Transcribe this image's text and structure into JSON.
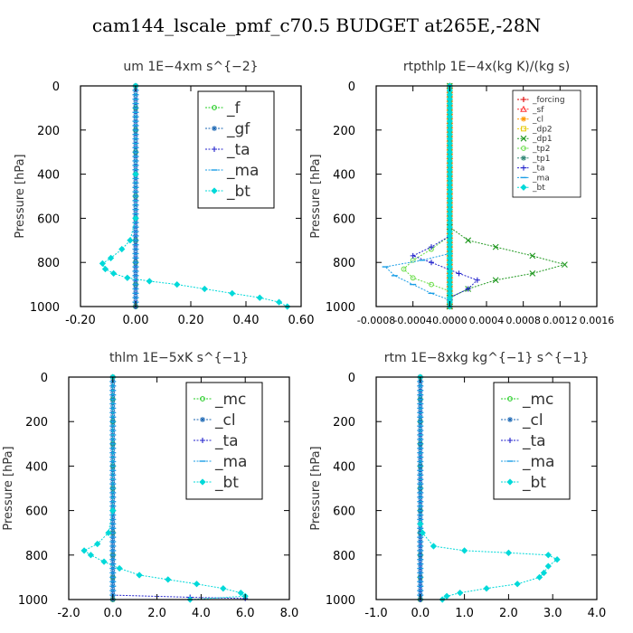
{
  "figure": {
    "title": "cam144_lscale_pmf_c70.5  BUDGET at265E,-28N"
  },
  "chart_data": [
    {
      "type": "line",
      "title": "um   1E−4xm s^{−2}",
      "ylabel": "Pressure [hPa]",
      "xlabel": "",
      "xlim": [
        -0.2,
        0.6
      ],
      "ylim": [
        1000,
        0
      ],
      "xticks": [
        -0.2,
        0.0,
        0.2,
        0.4,
        0.6
      ],
      "xtick_labels": [
        "-0.20",
        "0.00",
        "0.20",
        "0.40",
        "0.60"
      ],
      "yticks": [
        0,
        200,
        400,
        600,
        800,
        1000
      ],
      "ytick_labels": [
        "0",
        "200",
        "400",
        "600",
        "800",
        "1000"
      ],
      "legend": {
        "placement": "top-right",
        "size": "large"
      },
      "series": [
        {
          "name": "_f",
          "color": "#22cc22",
          "marker": "circle",
          "points": [
            [
              0,
              0
            ],
            [
              0,
              100
            ],
            [
              0,
              200
            ],
            [
              0,
              300
            ],
            [
              0,
              400
            ],
            [
              0,
              500
            ],
            [
              0,
              600
            ],
            [
              0,
              700
            ],
            [
              0,
              800
            ],
            [
              0,
              900
            ],
            [
              0,
              1000
            ]
          ]
        },
        {
          "name": "_gf",
          "color": "#1a66b3",
          "marker": "star",
          "points": [
            [
              0,
              0
            ],
            [
              0,
              500
            ],
            [
              0,
              1000
            ]
          ]
        },
        {
          "name": "_ta",
          "color": "#2222cc",
          "marker": "plus",
          "points": [
            [
              0,
              0
            ],
            [
              0,
              500
            ],
            [
              0,
              1000
            ]
          ]
        },
        {
          "name": "_ma",
          "color": "#1a9ee6",
          "marker": "dash",
          "points": [
            [
              0,
              0
            ],
            [
              0,
              500
            ],
            [
              0,
              1000
            ]
          ]
        },
        {
          "name": "_bt",
          "color": "#00d9d9",
          "marker": "diamond",
          "points": [
            [
              0.0,
              0
            ],
            [
              0.0,
              400
            ],
            [
              0.0,
              600
            ],
            [
              -0.02,
              700
            ],
            [
              -0.05,
              740
            ],
            [
              -0.09,
              780
            ],
            [
              -0.12,
              805
            ],
            [
              -0.11,
              830
            ],
            [
              -0.08,
              850
            ],
            [
              -0.03,
              870
            ],
            [
              0.05,
              885
            ],
            [
              0.15,
              900
            ],
            [
              0.25,
              920
            ],
            [
              0.35,
              940
            ],
            [
              0.45,
              960
            ],
            [
              0.52,
              980
            ],
            [
              0.55,
              1000
            ]
          ]
        }
      ]
    },
    {
      "type": "line",
      "title": "rtpthlp   1E−4x(kg K)/(kg s)",
      "ylabel": "Pressure [hPa]",
      "xlabel": "",
      "xlim": [
        -0.0008,
        0.0016
      ],
      "ylim": [
        1000,
        0
      ],
      "xticks": [
        -0.0008,
        -0.0004,
        0.0,
        0.0004,
        0.0008,
        0.0012,
        0.0016
      ],
      "xtick_labels": [
        "-0.0008",
        "-0.0004",
        "0.0000",
        "0.0004",
        "0.0008",
        "0.0012",
        "0.0016"
      ],
      "yticks": [
        0,
        200,
        400,
        600,
        800,
        1000
      ],
      "ytick_labels": [
        "0",
        "200",
        "400",
        "600",
        "800",
        "1000"
      ],
      "legend": {
        "placement": "top-right",
        "size": "small"
      },
      "series": [
        {
          "name": "_forcing",
          "color": "#dd0000",
          "marker": "plus",
          "points": [
            [
              0,
              0
            ],
            [
              0,
              500
            ],
            [
              0,
              1000
            ]
          ]
        },
        {
          "name": "_sf",
          "color": "#ff3333",
          "marker": "triangle",
          "points": [
            [
              0,
              0
            ],
            [
              0,
              500
            ],
            [
              0,
              1000
            ]
          ]
        },
        {
          "name": "_cl",
          "color": "#ff9900",
          "marker": "star",
          "points": [
            [
              0,
              0
            ],
            [
              0,
              500
            ],
            [
              0,
              1000
            ]
          ]
        },
        {
          "name": "_dp2",
          "color": "#e6c800",
          "marker": "square",
          "points": [
            [
              0,
              0
            ],
            [
              0,
              500
            ],
            [
              0,
              1000
            ]
          ]
        },
        {
          "name": "_dp1",
          "color": "#229922",
          "marker": "cross",
          "points": [
            [
              0.0,
              0
            ],
            [
              0.0,
              640
            ],
            [
              0.0002,
              700
            ],
            [
              0.0005,
              730
            ],
            [
              0.0009,
              770
            ],
            [
              0.00125,
              810
            ],
            [
              0.0009,
              850
            ],
            [
              0.0005,
              880
            ],
            [
              0.0002,
              920
            ],
            [
              0.0,
              960
            ],
            [
              0.0,
              1000
            ]
          ]
        },
        {
          "name": "_tp2",
          "color": "#66dd44",
          "marker": "circle",
          "points": [
            [
              0.0,
              0
            ],
            [
              0.0,
              680
            ],
            [
              -0.0002,
              740
            ],
            [
              -0.0004,
              790
            ],
            [
              -0.0005,
              830
            ],
            [
              -0.0004,
              870
            ],
            [
              -0.0002,
              900
            ],
            [
              0.0,
              930
            ],
            [
              0.0,
              1000
            ]
          ]
        },
        {
          "name": "_tp1",
          "color": "#338877",
          "marker": "star",
          "points": [
            [
              0,
              0
            ],
            [
              0,
              500
            ],
            [
              0,
              1000
            ]
          ]
        },
        {
          "name": "_ta",
          "color": "#2222cc",
          "marker": "plus",
          "points": [
            [
              0.0,
              0
            ],
            [
              0.0,
              680
            ],
            [
              -0.0002,
              730
            ],
            [
              -0.0004,
              770
            ],
            [
              -0.0002,
              800
            ],
            [
              0.0001,
              850
            ],
            [
              0.0003,
              880
            ],
            [
              0.0002,
              920
            ],
            [
              0.0,
              960
            ],
            [
              0.0,
              1000
            ]
          ]
        },
        {
          "name": "_ma",
          "color": "#1a9ee6",
          "marker": "dash",
          "points": [
            [
              0.0,
              0
            ],
            [
              0.0,
              760
            ],
            [
              -0.0003,
              790
            ],
            [
              -0.0007,
              820
            ],
            [
              -0.0006,
              860
            ],
            [
              -0.0004,
              900
            ],
            [
              -0.0002,
              940
            ],
            [
              0.0,
              970
            ],
            [
              0.0,
              1000
            ]
          ]
        },
        {
          "name": "_bt",
          "color": "#00d9d9",
          "marker": "diamond",
          "points": [
            [
              0,
              0
            ],
            [
              0,
              500
            ],
            [
              0,
              1000
            ]
          ]
        }
      ]
    },
    {
      "type": "line",
      "title": "thlm   1E−5xK  s^{−1}",
      "ylabel": "Pressure [hPa]",
      "xlabel": "",
      "xlim": [
        -2.0,
        8.0
      ],
      "ylim": [
        1000,
        0
      ],
      "xticks": [
        -2.0,
        0.0,
        2.0,
        4.0,
        6.0,
        8.0
      ],
      "xtick_labels": [
        "-2.0",
        "0.0",
        "2.0",
        "4.0",
        "6.0",
        "8.0"
      ],
      "yticks": [
        0,
        200,
        400,
        600,
        800,
        1000
      ],
      "ytick_labels": [
        "0",
        "200",
        "400",
        "600",
        "800",
        "1000"
      ],
      "legend": {
        "placement": "top-right",
        "size": "large"
      },
      "series": [
        {
          "name": "_mc",
          "color": "#22cc22",
          "marker": "circle",
          "points": [
            [
              0,
              0
            ],
            [
              0,
              100
            ],
            [
              0,
              200
            ],
            [
              0,
              300
            ],
            [
              0,
              400
            ],
            [
              0,
              500
            ],
            [
              0,
              600
            ],
            [
              0,
              700
            ],
            [
              0,
              800
            ],
            [
              0,
              900
            ],
            [
              0,
              1000
            ]
          ]
        },
        {
          "name": "_cl",
          "color": "#1a66b3",
          "marker": "star",
          "points": [
            [
              0,
              0
            ],
            [
              0,
              500
            ],
            [
              0,
              1000
            ]
          ]
        },
        {
          "name": "_ta",
          "color": "#2222cc",
          "marker": "plus",
          "points": [
            [
              0,
              0
            ],
            [
              0,
              980
            ],
            [
              3.5,
              990
            ],
            [
              6.0,
              995
            ]
          ]
        },
        {
          "name": "_ma",
          "color": "#1a9ee6",
          "marker": "dash",
          "points": [
            [
              0,
              0
            ],
            [
              0,
              500
            ],
            [
              0,
              1000
            ]
          ]
        },
        {
          "name": "_bt",
          "color": "#00d9d9",
          "marker": "diamond",
          "points": [
            [
              0.0,
              0
            ],
            [
              0.0,
              600
            ],
            [
              -0.2,
              700
            ],
            [
              -0.7,
              750
            ],
            [
              -1.3,
              780
            ],
            [
              -1.0,
              800
            ],
            [
              -0.4,
              830
            ],
            [
              0.3,
              860
            ],
            [
              1.2,
              890
            ],
            [
              2.5,
              910
            ],
            [
              3.8,
              930
            ],
            [
              5.0,
              950
            ],
            [
              5.8,
              970
            ],
            [
              6.0,
              985
            ],
            [
              3.5,
              1000
            ]
          ]
        }
      ]
    },
    {
      "type": "line",
      "title": "rtm   1E−8xkg kg^{−1} s^{−1}",
      "ylabel": "Pressure [hPa]",
      "xlabel": "",
      "xlim": [
        -1.0,
        4.0
      ],
      "ylim": [
        1000,
        0
      ],
      "xticks": [
        -1.0,
        0.0,
        1.0,
        2.0,
        3.0,
        4.0
      ],
      "xtick_labels": [
        "-1.0",
        "0.0",
        "1.0",
        "2.0",
        "3.0",
        "4.0"
      ],
      "yticks": [
        0,
        200,
        400,
        600,
        800,
        1000
      ],
      "ytick_labels": [
        "0",
        "200",
        "400",
        "600",
        "800",
        "1000"
      ],
      "legend": {
        "placement": "top-right",
        "size": "large"
      },
      "series": [
        {
          "name": "_mc",
          "color": "#22cc22",
          "marker": "circle",
          "points": [
            [
              0,
              0
            ],
            [
              0,
              100
            ],
            [
              0,
              200
            ],
            [
              0,
              300
            ],
            [
              0,
              400
            ],
            [
              0,
              500
            ],
            [
              0,
              600
            ],
            [
              0,
              700
            ],
            [
              0,
              800
            ],
            [
              0,
              900
            ],
            [
              0,
              1000
            ]
          ]
        },
        {
          "name": "_cl",
          "color": "#1a66b3",
          "marker": "star",
          "points": [
            [
              0,
              0
            ],
            [
              0,
              500
            ],
            [
              0,
              1000
            ]
          ]
        },
        {
          "name": "_ta",
          "color": "#2222cc",
          "marker": "plus",
          "points": [
            [
              0,
              0
            ],
            [
              0,
              500
            ],
            [
              0,
              1000
            ]
          ]
        },
        {
          "name": "_ma",
          "color": "#1a9ee6",
          "marker": "dash",
          "points": [
            [
              0,
              0
            ],
            [
              0,
              500
            ],
            [
              0,
              1000
            ]
          ]
        },
        {
          "name": "_bt",
          "color": "#00d9d9",
          "marker": "diamond",
          "points": [
            [
              0.0,
              0
            ],
            [
              0.0,
              660
            ],
            [
              0.05,
              700
            ],
            [
              0.3,
              760
            ],
            [
              1.0,
              780
            ],
            [
              2.0,
              790
            ],
            [
              2.9,
              800
            ],
            [
              3.1,
              820
            ],
            [
              2.9,
              850
            ],
            [
              2.8,
              880
            ],
            [
              2.7,
              900
            ],
            [
              2.2,
              930
            ],
            [
              1.5,
              950
            ],
            [
              0.9,
              970
            ],
            [
              0.6,
              985
            ],
            [
              0.5,
              1000
            ]
          ]
        }
      ]
    }
  ]
}
